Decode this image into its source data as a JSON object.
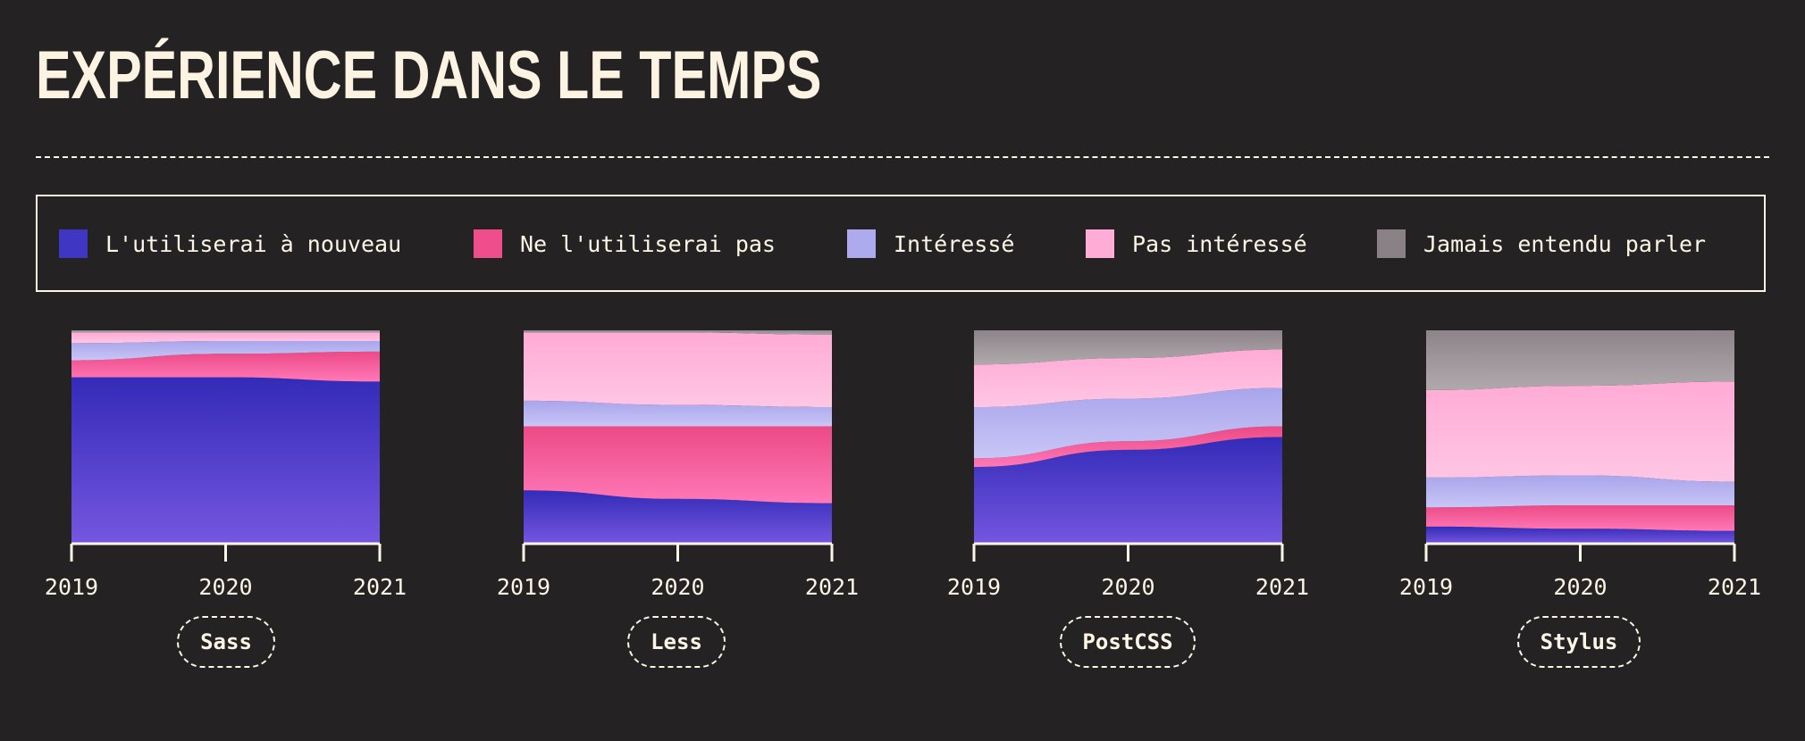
{
  "title": "EXPÉRIENCE DANS LE TEMPS",
  "legend": [
    {
      "label": "L'utiliserai à nouveau",
      "color": "#3f36c4"
    },
    {
      "label": "Ne l'utiliserai pas",
      "color": "#ef4d8b"
    },
    {
      "label": "Intéressé",
      "color": "#aeaaee"
    },
    {
      "label": "Pas intéressé",
      "color": "#ffadd6"
    },
    {
      "label": "Jamais entendu parler",
      "color": "#8a8186"
    }
  ],
  "chart_data": [
    {
      "type": "area",
      "name": "Sass",
      "x": [
        "2019",
        "2020",
        "2021"
      ],
      "ylim": [
        0,
        100
      ],
      "series": [
        {
          "name": "L'utiliserai à nouveau",
          "values": [
            78,
            78,
            76
          ]
        },
        {
          "name": "Ne l'utiliserai pas",
          "values": [
            8,
            11,
            14
          ]
        },
        {
          "name": "Intéressé",
          "values": [
            8,
            6,
            5
          ]
        },
        {
          "name": "Pas intéressé",
          "values": [
            5,
            4,
            4
          ]
        },
        {
          "name": "Jamais entendu parler",
          "values": [
            1,
            1,
            1
          ]
        }
      ]
    },
    {
      "type": "area",
      "name": "Less",
      "x": [
        "2019",
        "2020",
        "2021"
      ],
      "ylim": [
        0,
        100
      ],
      "series": [
        {
          "name": "L'utiliserai à nouveau",
          "values": [
            25,
            21,
            19
          ]
        },
        {
          "name": "Ne l'utiliserai pas",
          "values": [
            30,
            34,
            36
          ]
        },
        {
          "name": "Intéressé",
          "values": [
            12,
            10,
            9
          ]
        },
        {
          "name": "Pas intéressé",
          "values": [
            32,
            34,
            34
          ]
        },
        {
          "name": "Jamais entendu parler",
          "values": [
            1,
            1,
            2
          ]
        }
      ]
    },
    {
      "type": "area",
      "name": "PostCSS",
      "x": [
        "2019",
        "2020",
        "2021"
      ],
      "ylim": [
        0,
        100
      ],
      "series": [
        {
          "name": "L'utiliserai à nouveau",
          "values": [
            36,
            44,
            50
          ]
        },
        {
          "name": "Ne l'utiliserai pas",
          "values": [
            4,
            4,
            5
          ]
        },
        {
          "name": "Intéressé",
          "values": [
            24,
            20,
            18
          ]
        },
        {
          "name": "Pas intéressé",
          "values": [
            20,
            19,
            18
          ]
        },
        {
          "name": "Jamais entendu parler",
          "values": [
            16,
            13,
            9
          ]
        }
      ]
    },
    {
      "type": "area",
      "name": "Stylus",
      "x": [
        "2019",
        "2020",
        "2021"
      ],
      "ylim": [
        0,
        100
      ],
      "series": [
        {
          "name": "L'utiliserai à nouveau",
          "values": [
            8,
            7,
            6
          ]
        },
        {
          "name": "Ne l'utiliserai pas",
          "values": [
            9,
            11,
            12
          ]
        },
        {
          "name": "Intéressé",
          "values": [
            14,
            14,
            11
          ]
        },
        {
          "name": "Pas intéressé",
          "values": [
            41,
            42,
            47
          ]
        },
        {
          "name": "Jamais entendu parler",
          "values": [
            28,
            26,
            24
          ]
        }
      ]
    }
  ]
}
